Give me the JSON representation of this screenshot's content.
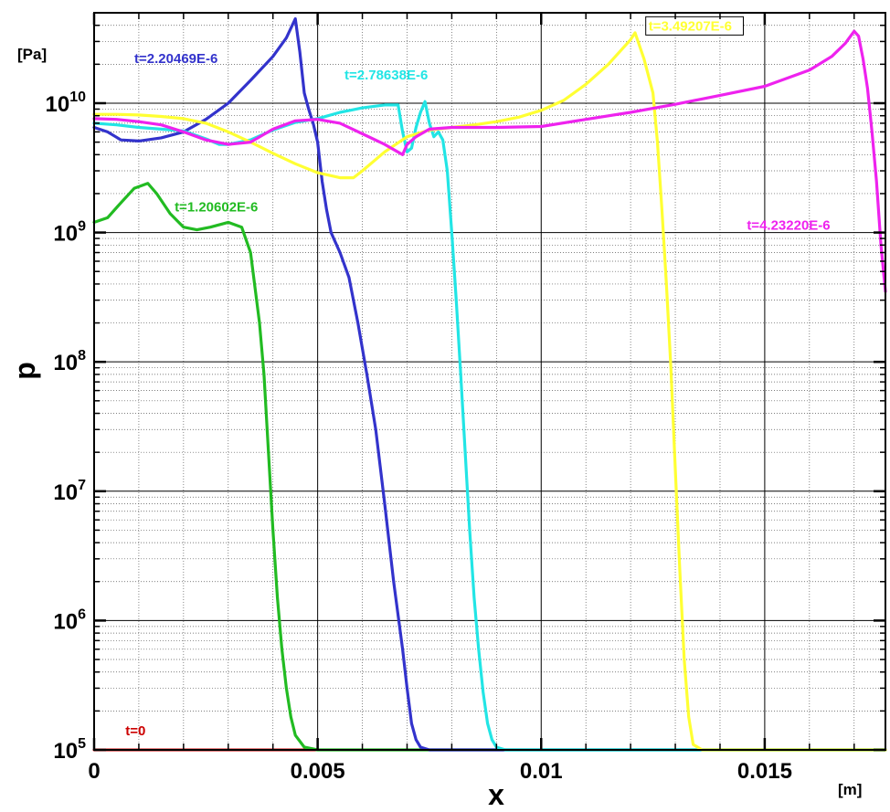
{
  "chart_data": {
    "type": "line",
    "xlabel": "x",
    "ylabel": "p",
    "x_unit": "[m]",
    "y_unit": "[Pa]",
    "y_scale": "log",
    "xlim": [
      0,
      0.0177
    ],
    "ylim": [
      100000,
      50000000000
    ],
    "grid": true,
    "x_ticks": [
      {
        "value": 0,
        "label": "0"
      },
      {
        "value": 0.005,
        "label": "0.005"
      },
      {
        "value": 0.01,
        "label": "0.01"
      },
      {
        "value": 0.015,
        "label": "0.015"
      }
    ],
    "y_ticks": [
      {
        "value": 100000,
        "base": "10",
        "exp": "5"
      },
      {
        "value": 1000000,
        "base": "10",
        "exp": "6"
      },
      {
        "value": 10000000,
        "base": "10",
        "exp": "7"
      },
      {
        "value": 100000000,
        "base": "10",
        "exp": "8"
      },
      {
        "value": 1000000000,
        "base": "10",
        "exp": "9"
      },
      {
        "value": 10000000000,
        "base": "10",
        "exp": "10"
      }
    ],
    "series": [
      {
        "name": "t=0",
        "color": "#cc0000",
        "points": [
          [
            0,
            100000
          ],
          [
            0.0177,
            100000
          ]
        ]
      },
      {
        "name": "t=1.20602E-6",
        "color": "#22bb22",
        "points": [
          [
            0,
            1200000000.0
          ],
          [
            0.0003,
            1300000000.0
          ],
          [
            0.0006,
            1700000000.0
          ],
          [
            0.0009,
            2200000000.0
          ],
          [
            0.0012,
            2400000000.0
          ],
          [
            0.0014,
            2000000000.0
          ],
          [
            0.0017,
            1400000000.0
          ],
          [
            0.002,
            1100000000.0
          ],
          [
            0.0023,
            1050000000.0
          ],
          [
            0.0026,
            1100000000.0
          ],
          [
            0.003,
            1200000000.0
          ],
          [
            0.0033,
            1100000000.0
          ],
          [
            0.0035,
            700000000.0
          ],
          [
            0.0037,
            200000000.0
          ],
          [
            0.0038,
            80000000.0
          ],
          [
            0.0039,
            20000000.0
          ],
          [
            0.004,
            5000000.0
          ],
          [
            0.0041,
            1500000.0
          ],
          [
            0.0042,
            600000.0
          ],
          [
            0.0043,
            300000.0
          ],
          [
            0.0044,
            180000.0
          ],
          [
            0.0045,
            130000.0
          ],
          [
            0.0047,
            105000.0
          ],
          [
            0.005,
            100000.0
          ],
          [
            0.0177,
            100000.0
          ]
        ]
      },
      {
        "name": "t=2.20469E-6",
        "color": "#3333cc",
        "points": [
          [
            0,
            6500000000.0
          ],
          [
            0.0003,
            6000000000.0
          ],
          [
            0.0006,
            5200000000.0
          ],
          [
            0.001,
            5100000000.0
          ],
          [
            0.0015,
            5400000000.0
          ],
          [
            0.002,
            6000000000.0
          ],
          [
            0.0025,
            7500000000.0
          ],
          [
            0.003,
            10000000000.0
          ],
          [
            0.0035,
            15000000000.0
          ],
          [
            0.004,
            23000000000.0
          ],
          [
            0.0043,
            32000000000.0
          ],
          [
            0.0045,
            45000000000.0
          ],
          [
            0.0046,
            25000000000.0
          ],
          [
            0.0047,
            12000000000.0
          ],
          [
            0.0048,
            9000000000.0
          ],
          [
            0.0049,
            7000000000.0
          ],
          [
            0.005,
            5000000000.0
          ],
          [
            0.0051,
            2500000000.0
          ],
          [
            0.0052,
            1500000000.0
          ],
          [
            0.0053,
            1000000000.0
          ],
          [
            0.0055,
            700000000.0
          ],
          [
            0.0057,
            450000000.0
          ],
          [
            0.0059,
            200000000.0
          ],
          [
            0.0061,
            80000000.0
          ],
          [
            0.0063,
            30000000.0
          ],
          [
            0.0065,
            8000000.0
          ],
          [
            0.0067,
            2000000.0
          ],
          [
            0.0069,
            600000.0
          ],
          [
            0.007,
            300000.0
          ],
          [
            0.0071,
            160000.0
          ],
          [
            0.0072,
            120000.0
          ],
          [
            0.0073,
            105000.0
          ],
          [
            0.0075,
            100000.0
          ],
          [
            0.0177,
            100000.0
          ]
        ]
      },
      {
        "name": "t=2.78638E-6",
        "color": "#22e5e5",
        "points": [
          [
            0,
            7000000000.0
          ],
          [
            0.0005,
            6800000000.0
          ],
          [
            0.001,
            6500000000.0
          ],
          [
            0.0015,
            6300000000.0
          ],
          [
            0.002,
            6100000000.0
          ],
          [
            0.0025,
            5300000000.0
          ],
          [
            0.0028,
            4800000000.0
          ],
          [
            0.003,
            4800000000.0
          ],
          [
            0.0035,
            5200000000.0
          ],
          [
            0.004,
            6200000000.0
          ],
          [
            0.0045,
            7100000000.0
          ],
          [
            0.005,
            7600000000.0
          ],
          [
            0.0055,
            8500000000.0
          ],
          [
            0.006,
            9200000000.0
          ],
          [
            0.0065,
            9700000000.0
          ],
          [
            0.0068,
            9700000000.0
          ],
          [
            0.0069,
            6000000000.0
          ],
          [
            0.007,
            4200000000.0
          ],
          [
            0.0071,
            4500000000.0
          ],
          [
            0.0072,
            6500000000.0
          ],
          [
            0.0073,
            8500000000.0
          ],
          [
            0.0074,
            10300000000.0
          ],
          [
            0.0075,
            7000000000.0
          ],
          [
            0.0076,
            5500000000.0
          ],
          [
            0.0077,
            6000000000.0
          ],
          [
            0.0078,
            5200000000.0
          ],
          [
            0.0079,
            3000000000.0
          ],
          [
            0.008,
            1000000000.0
          ],
          [
            0.0081,
            300000000.0
          ],
          [
            0.0082,
            80000000.0
          ],
          [
            0.0083,
            20000000.0
          ],
          [
            0.0084,
            5000000.0
          ],
          [
            0.0085,
            1500000.0
          ],
          [
            0.0086,
            600000.0
          ],
          [
            0.0087,
            280000.0
          ],
          [
            0.0088,
            160000.0
          ],
          [
            0.0089,
            120000.0
          ],
          [
            0.009,
            105000.0
          ],
          [
            0.0092,
            100000.0
          ],
          [
            0.0177,
            100000.0
          ]
        ]
      },
      {
        "name": "t=3.49207E-6",
        "color": "#ffff33",
        "points": [
          [
            0,
            8200000000.0
          ],
          [
            0.0005,
            8200000000.0
          ],
          [
            0.001,
            8100000000.0
          ],
          [
            0.0015,
            7900000000.0
          ],
          [
            0.002,
            7600000000.0
          ],
          [
            0.0025,
            7000000000.0
          ],
          [
            0.003,
            6000000000.0
          ],
          [
            0.0035,
            5000000000.0
          ],
          [
            0.004,
            4100000000.0
          ],
          [
            0.0045,
            3400000000.0
          ],
          [
            0.005,
            2900000000.0
          ],
          [
            0.0055,
            2650000000.0
          ],
          [
            0.0058,
            2650000000.0
          ],
          [
            0.006,
            3000000000.0
          ],
          [
            0.0065,
            4200000000.0
          ],
          [
            0.007,
            5500000000.0
          ],
          [
            0.0075,
            6200000000.0
          ],
          [
            0.008,
            6500000000.0
          ],
          [
            0.0085,
            6800000000.0
          ],
          [
            0.009,
            7200000000.0
          ],
          [
            0.0095,
            7800000000.0
          ],
          [
            0.01,
            8800000000.0
          ],
          [
            0.0105,
            10500000000.0
          ],
          [
            0.011,
            14000000000.0
          ],
          [
            0.0115,
            20000000000.0
          ],
          [
            0.012,
            31000000000.0
          ],
          [
            0.0121,
            35000000000.0
          ],
          [
            0.0123,
            22000000000.0
          ],
          [
            0.0125,
            12000000000.0
          ],
          [
            0.0126,
            5000000000.0
          ],
          [
            0.0127,
            1500000000.0
          ],
          [
            0.0128,
            400000000.0
          ],
          [
            0.0129,
            90000000.0
          ],
          [
            0.013,
            15000000.0
          ],
          [
            0.0131,
            2500000.0
          ],
          [
            0.0132,
            500000.0
          ],
          [
            0.0133,
            180000.0
          ],
          [
            0.0134,
            110000.0
          ],
          [
            0.0136,
            100000.0
          ],
          [
            0.0177,
            100000.0
          ]
        ]
      },
      {
        "name": "t=4.23220E-6",
        "color": "#ee22ee",
        "points": [
          [
            0,
            7600000000.0
          ],
          [
            0.0005,
            7500000000.0
          ],
          [
            0.001,
            7200000000.0
          ],
          [
            0.0015,
            6800000000.0
          ],
          [
            0.002,
            6000000000.0
          ],
          [
            0.0025,
            5200000000.0
          ],
          [
            0.003,
            4800000000.0
          ],
          [
            0.0035,
            5000000000.0
          ],
          [
            0.004,
            6300000000.0
          ],
          [
            0.0045,
            7300000000.0
          ],
          [
            0.005,
            7500000000.0
          ],
          [
            0.0055,
            7000000000.0
          ],
          [
            0.006,
            5800000000.0
          ],
          [
            0.0065,
            4800000000.0
          ],
          [
            0.0069,
            4000000000.0
          ],
          [
            0.007,
            4800000000.0
          ],
          [
            0.0072,
            5500000000.0
          ],
          [
            0.0075,
            6300000000.0
          ],
          [
            0.008,
            6500000000.0
          ],
          [
            0.009,
            6500000000.0
          ],
          [
            0.01,
            6600000000.0
          ],
          [
            0.011,
            7500000000.0
          ],
          [
            0.012,
            8500000000.0
          ],
          [
            0.013,
            9800000000.0
          ],
          [
            0.014,
            11500000000.0
          ],
          [
            0.015,
            13500000000.0
          ],
          [
            0.016,
            18000000000.0
          ],
          [
            0.0165,
            23000000000.0
          ],
          [
            0.0168,
            29000000000.0
          ],
          [
            0.017,
            36000000000.0
          ],
          [
            0.0171,
            33000000000.0
          ],
          [
            0.0172,
            22000000000.0
          ],
          [
            0.0173,
            13000000000.0
          ],
          [
            0.0174,
            6000000000.0
          ],
          [
            0.0175,
            2500000000.0
          ],
          [
            0.0176,
            800000000.0
          ],
          [
            0.0177,
            350000000.0
          ]
        ]
      }
    ],
    "labels": [
      {
        "text": "t=0",
        "series": 0,
        "x": 0.0007,
        "y": 130000,
        "anchor": "start",
        "boxed": false,
        "small": true
      },
      {
        "text": "t=1.20602E-6",
        "series": 1,
        "x": 0.0018,
        "y": 1450000000.0,
        "anchor": "start",
        "boxed": false
      },
      {
        "text": "t=2.20469E-6",
        "series": 2,
        "x": 0.0009,
        "y": 20500000000.0,
        "anchor": "start",
        "boxed": false
      },
      {
        "text": "t=2.78638E-6",
        "series": 3,
        "x": 0.0056,
        "y": 15200000000.0,
        "anchor": "start",
        "boxed": false
      },
      {
        "text": "t=3.49207E-6",
        "series": 4,
        "x": 0.0124,
        "y": 36500000000.0,
        "anchor": "start",
        "boxed": true
      },
      {
        "text": "t=4.23220E-6",
        "series": 5,
        "x": 0.0146,
        "y": 1050000000.0,
        "anchor": "start",
        "boxed": false
      }
    ]
  }
}
